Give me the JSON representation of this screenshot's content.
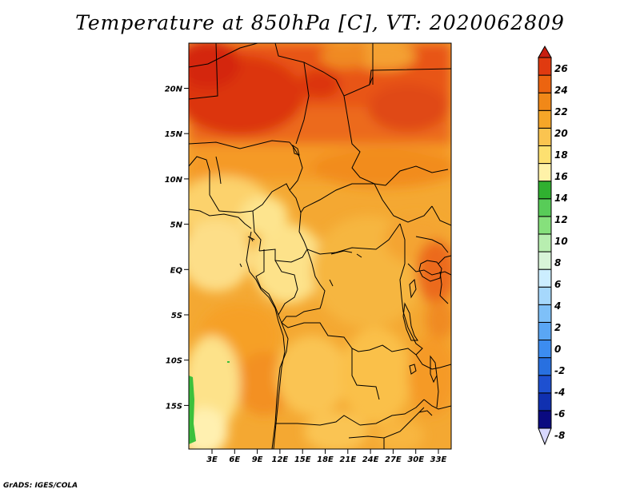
{
  "title": "Temperature at 850hPa [C], VT: 2020062809",
  "credit": "GrADS: IGES/COLA",
  "lat_ticks": [
    "20N",
    "15N",
    "10N",
    "5N",
    "EQ",
    "5S",
    "10S",
    "15S"
  ],
  "lon_ticks": [
    "3E",
    "6E",
    "9E",
    "12E",
    "15E",
    "18E",
    "21E",
    "24E",
    "27E",
    "30E",
    "33E"
  ],
  "colorbar": {
    "labels": [
      "26",
      "24",
      "22",
      "20",
      "18",
      "16",
      "14",
      "12",
      "10",
      "8",
      "6",
      "4",
      "2",
      "0",
      "-2",
      "-4",
      "-6",
      "-8"
    ],
    "colors": [
      "#d8d8ff",
      "#0a0a80",
      "#1030b0",
      "#1e50d0",
      "#2870e0",
      "#3c8cf0",
      "#5aa6f4",
      "#7ec0f8",
      "#a6d8fc",
      "#cceeff",
      "#d8f4d8",
      "#b8eeb0",
      "#86e07c",
      "#58cc58",
      "#30b030",
      "#fff2a8",
      "#fde070",
      "#fac450",
      "#f6a628",
      "#f18818",
      "#ec6410",
      "#e03a10",
      "#c81e10"
    ]
  }
}
